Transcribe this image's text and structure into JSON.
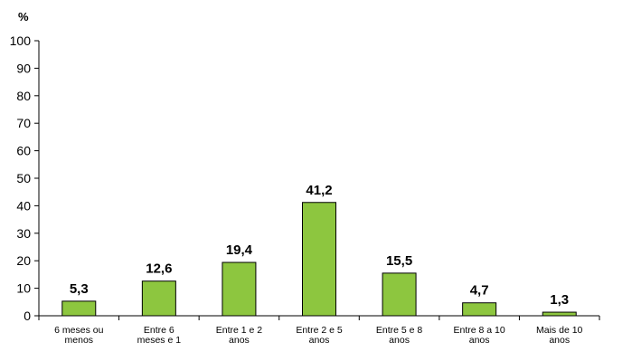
{
  "chart_data": {
    "type": "bar",
    "ylabel": "%",
    "ylim": [
      0,
      100
    ],
    "ytick_step": 10,
    "grid": false,
    "legend": "none",
    "bar_color": "#8dc63f",
    "bar_edge_color": "#000000",
    "categories": [
      [
        "6 meses ou",
        "menos"
      ],
      [
        "Entre 6",
        "meses e 1"
      ],
      [
        "Entre 1 e 2",
        "anos"
      ],
      [
        "Entre 2 e 5",
        "anos"
      ],
      [
        "Entre 5 e 8",
        "anos"
      ],
      [
        "Entre 8 a 10",
        "anos"
      ],
      [
        "Mais de 10",
        "anos"
      ]
    ],
    "values": [
      5.3,
      12.6,
      19.4,
      41.2,
      15.5,
      4.7,
      1.3
    ],
    "data_labels": [
      "5,3",
      "12,6",
      "19,4",
      "41,2",
      "15,5",
      "4,7",
      "1,3"
    ]
  }
}
